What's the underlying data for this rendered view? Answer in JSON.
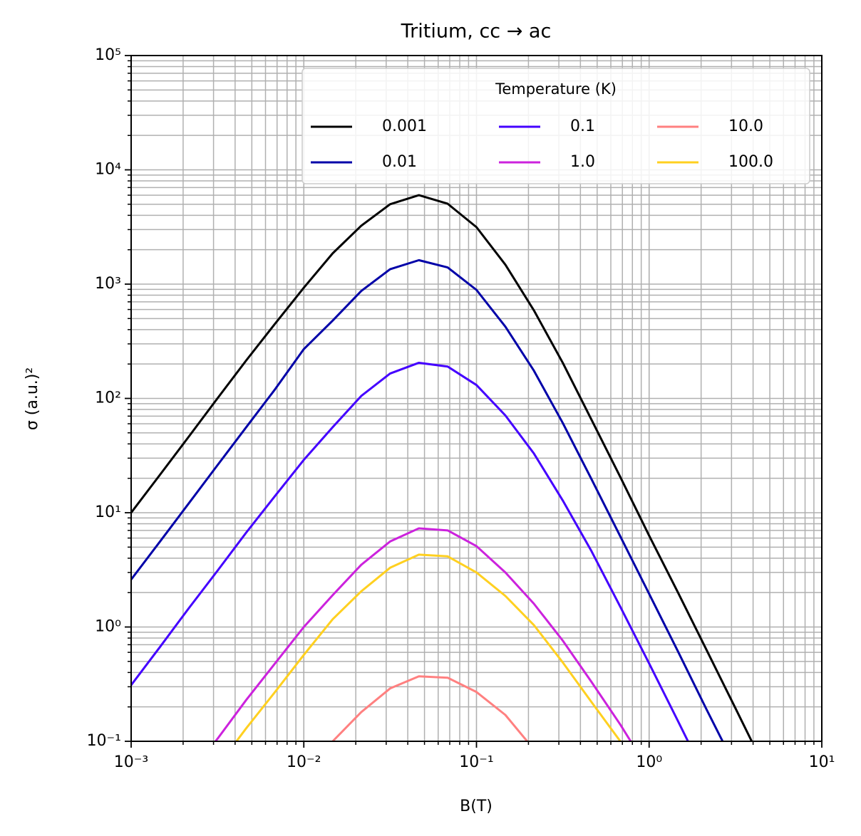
{
  "chart_data": {
    "type": "line",
    "title": "Tritium, cc → ac",
    "xlabel": "B(T)",
    "ylabel": "σ (a.u.)²",
    "log_x": true,
    "log_y": true,
    "grid": true,
    "minor_grid": true,
    "legend_title": "Temperature (K)",
    "legend_loc": "upper right",
    "legend_columns": 3,
    "xlim": [
      0.001,
      10
    ],
    "ylim": [
      0.1,
      100000
    ],
    "xticks": [
      {
        "value": 0.001,
        "label": "10⁻³"
      },
      {
        "value": 0.01,
        "label": "10⁻²"
      },
      {
        "value": 0.1,
        "label": "10⁻¹"
      },
      {
        "value": 1,
        "label": "10⁰"
      },
      {
        "value": 10,
        "label": "10¹"
      }
    ],
    "yticks": [
      {
        "value": 0.1,
        "label": "10⁻¹"
      },
      {
        "value": 1,
        "label": "10⁰"
      },
      {
        "value": 10,
        "label": "10¹"
      },
      {
        "value": 100,
        "label": "10²"
      },
      {
        "value": 1000,
        "label": "10³"
      },
      {
        "value": 10000,
        "label": "10⁴"
      },
      {
        "value": 100000,
        "label": "10⁵"
      }
    ],
    "x": [
      0.001,
      0.00147,
      0.00215,
      0.00316,
      0.00464,
      0.00681,
      0.01,
      0.0147,
      0.0215,
      0.0316,
      0.0464,
      0.0681,
      0.1,
      0.147,
      0.215,
      0.316,
      0.464,
      0.681,
      1,
      1.47,
      2.15,
      3.16,
      4.64,
      6.81,
      10
    ],
    "series": [
      {
        "name": "0.001",
        "color": "#000000",
        "values": [
          10,
          21.5,
          46,
          100,
          215,
          450,
          930,
          1860,
          3240,
          5000,
          6000,
          5050,
          3150,
          1480,
          590,
          205,
          65,
          20.5,
          6.3,
          2.0,
          0.63,
          0.195,
          0.06,
          null,
          null
        ]
      },
      {
        "name": "0.01",
        "color": "#0000a8",
        "values": [
          2.6,
          5.6,
          12,
          26,
          56,
          120,
          270,
          480,
          870,
          1350,
          1620,
          1400,
          890,
          425,
          175,
          61,
          19.6,
          6.2,
          1.95,
          0.61,
          0.19,
          0.06,
          null,
          null,
          null
        ]
      },
      {
        "name": "0.1",
        "color": "#4400ff",
        "values": [
          0.31,
          0.67,
          1.45,
          3.1,
          6.7,
          14,
          29,
          56,
          105,
          165,
          205,
          190,
          131,
          71,
          33,
          12.8,
          4.6,
          1.5,
          0.48,
          0.15,
          0.047,
          null,
          null,
          null,
          null
        ]
      },
      {
        "name": "1.0",
        "color": "#cc22dd",
        "values": [
          null,
          null,
          0.05,
          0.105,
          0.23,
          0.48,
          1.0,
          1.9,
          3.5,
          5.6,
          7.3,
          7.0,
          5.1,
          3.0,
          1.6,
          0.76,
          0.33,
          0.14,
          0.055,
          null,
          null,
          null,
          null,
          null,
          null
        ]
      },
      {
        "name": "10.0",
        "color": "#ff8080",
        "values": [
          null,
          null,
          null,
          null,
          null,
          null,
          0.046,
          0.1,
          0.18,
          0.29,
          0.37,
          0.36,
          0.27,
          0.17,
          0.085,
          0.04,
          null,
          null,
          null,
          null,
          null,
          null,
          null,
          null,
          null
        ]
      },
      {
        "name": "100.0",
        "color": "#ffd020",
        "values": [
          null,
          null,
          null,
          0.06,
          0.13,
          0.27,
          0.57,
          1.17,
          2.05,
          3.3,
          4.3,
          4.15,
          3.0,
          1.87,
          1.04,
          0.49,
          0.22,
          0.1,
          0.04,
          null,
          null,
          null,
          null,
          null,
          null
        ]
      }
    ]
  }
}
